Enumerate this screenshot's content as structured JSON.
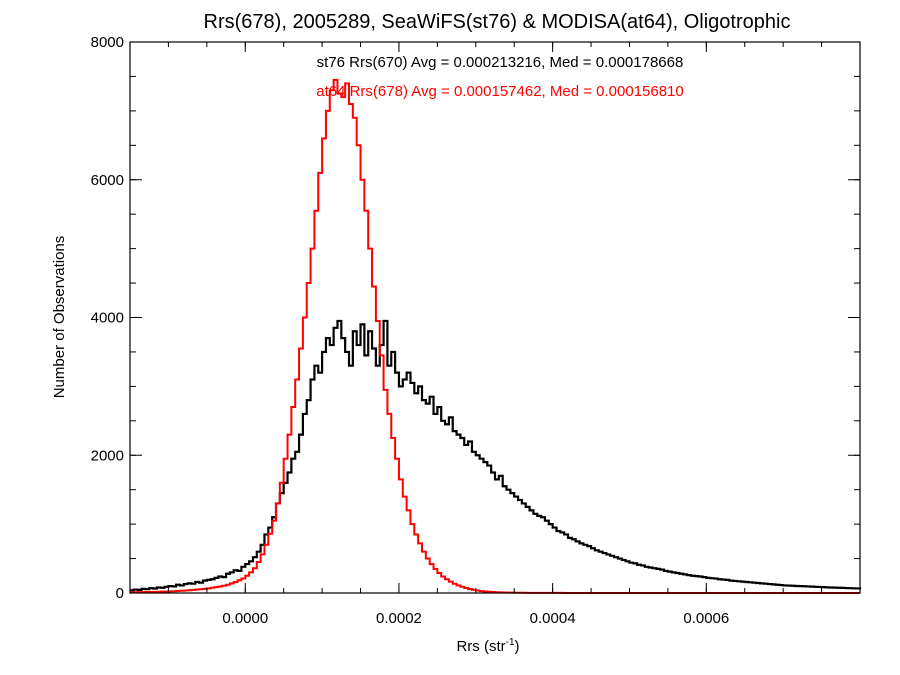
{
  "chart_data": {
    "type": "histogram",
    "title": "Rrs(678), 2005289, SeaWiFS(st76) & MODISA(at64), Oligotrophic",
    "xlabel_base": "Rrs (str",
    "xlabel_sup": "-1",
    "xlabel_close": ")",
    "ylabel": "Number of Observations",
    "xlim": [
      -0.00015,
      0.0008
    ],
    "ylim": [
      0,
      8000
    ],
    "x_ticks": [
      {
        "value": 0.0,
        "label": "0.0000"
      },
      {
        "value": 0.0002,
        "label": "0.0002"
      },
      {
        "value": 0.0004,
        "label": "0.0004"
      },
      {
        "value": 0.0006,
        "label": "0.0006"
      }
    ],
    "x_minor_step": 5e-05,
    "y_ticks": [
      {
        "value": 0,
        "label": "0"
      },
      {
        "value": 2000,
        "label": "2000"
      },
      {
        "value": 4000,
        "label": "4000"
      },
      {
        "value": 6000,
        "label": "6000"
      },
      {
        "value": 8000,
        "label": "8000"
      }
    ],
    "y_minor_step": 500,
    "annotations": [
      {
        "text": "st76 Rrs(670) Avg = 0.000213216, Med = 0.000178668",
        "color": "#000000"
      },
      {
        "text": "at64 Rrs(678) Avg = 0.000157462, Med = 0.000156810",
        "color": "#ff0000"
      }
    ],
    "series": [
      {
        "name": "st76 Rrs(670)",
        "color": "#000000",
        "bin_start": -0.00015,
        "bin_width": 5e-06,
        "counts": [
          40,
          50,
          45,
          60,
          55,
          70,
          65,
          80,
          75,
          90,
          100,
          95,
          120,
          110,
          130,
          140,
          135,
          160,
          150,
          180,
          190,
          200,
          220,
          240,
          230,
          280,
          300,
          330,
          320,
          380,
          420,
          460,
          520,
          600,
          700,
          850,
          950,
          1100,
          1300,
          1450,
          1600,
          1750,
          1950,
          2050,
          2300,
          2600,
          2800,
          3100,
          3300,
          3200,
          3500,
          3700,
          3600,
          3850,
          3950,
          3700,
          3500,
          3300,
          3800,
          3600,
          3900,
          3450,
          3800,
          3550,
          3300,
          3600,
          3950,
          3300,
          3500,
          3200,
          3000,
          3100,
          3200,
          3050,
          2900,
          3000,
          2800,
          2750,
          2850,
          2600,
          2700,
          2500,
          2450,
          2550,
          2350,
          2300,
          2250,
          2150,
          2200,
          2050,
          2000,
          1950,
          1900,
          1850,
          1750,
          1650,
          1700,
          1550,
          1500,
          1450,
          1400,
          1350,
          1300,
          1250,
          1200,
          1150,
          1120,
          1100,
          1050,
          1000,
          950,
          900,
          880,
          850,
          800,
          780,
          750,
          720,
          700,
          680,
          650,
          620,
          600,
          580,
          560,
          540,
          520,
          500,
          480,
          460,
          440,
          430,
          410,
          400,
          380,
          370,
          360,
          350,
          340,
          320,
          310,
          300,
          290,
          280,
          270,
          260,
          250,
          245,
          240,
          230,
          220,
          215,
          210,
          200,
          195,
          190,
          180,
          175,
          170,
          165,
          160,
          155,
          150,
          145,
          140,
          135,
          130,
          125,
          120,
          115,
          110,
          108,
          105,
          102,
          100,
          98,
          95,
          92,
          90,
          88,
          85,
          82,
          80,
          78,
          76,
          74,
          72,
          70,
          68,
          66,
          64,
          62,
          60,
          58,
          56,
          54,
          52,
          50
        ]
      },
      {
        "name": "at64 Rrs(678)",
        "color": "#ff0000",
        "bin_start": -0.00015,
        "bin_width": 5e-06,
        "counts": [
          10,
          10,
          12,
          12,
          14,
          15,
          16,
          18,
          20,
          22,
          24,
          26,
          30,
          32,
          36,
          40,
          45,
          50,
          55,
          60,
          68,
          76,
          85,
          95,
          105,
          120,
          140,
          160,
          185,
          210,
          250,
          300,
          360,
          450,
          560,
          700,
          860,
          1050,
          1300,
          1600,
          1950,
          2300,
          2700,
          3100,
          3550,
          4000,
          4500,
          5000,
          5550,
          6100,
          6600,
          7000,
          7300,
          7450,
          7250,
          7200,
          7400,
          7100,
          6900,
          6500,
          6000,
          5550,
          5000,
          4450,
          3950,
          3450,
          2950,
          2600,
          2250,
          1950,
          1650,
          1400,
          1200,
          1000,
          850,
          720,
          600,
          500,
          420,
          350,
          290,
          240,
          200,
          165,
          135,
          110,
          90,
          72,
          58,
          46,
          36,
          28,
          22,
          18,
          14,
          11,
          9,
          7,
          6,
          5,
          4,
          3,
          3,
          2,
          2,
          2,
          1,
          1,
          1,
          1,
          1,
          1,
          1,
          0,
          0,
          0,
          0,
          0,
          0,
          0,
          0,
          0,
          0,
          0,
          0,
          0,
          0,
          0,
          0,
          0,
          0,
          0,
          0,
          0,
          0,
          0,
          0,
          0,
          0,
          0,
          0,
          0,
          0,
          0,
          0,
          0,
          0,
          0,
          0,
          0,
          0,
          0,
          0,
          0,
          0,
          0,
          0,
          0,
          0,
          0,
          0,
          0,
          0,
          0,
          0,
          0,
          0,
          0,
          0,
          0,
          0,
          0,
          0,
          0,
          0,
          0,
          0,
          0,
          0,
          0,
          0,
          0,
          0,
          0,
          0,
          0,
          0,
          0,
          0,
          0,
          0,
          0,
          0,
          0,
          0,
          0,
          0,
          0,
          0,
          0
        ]
      }
    ]
  }
}
